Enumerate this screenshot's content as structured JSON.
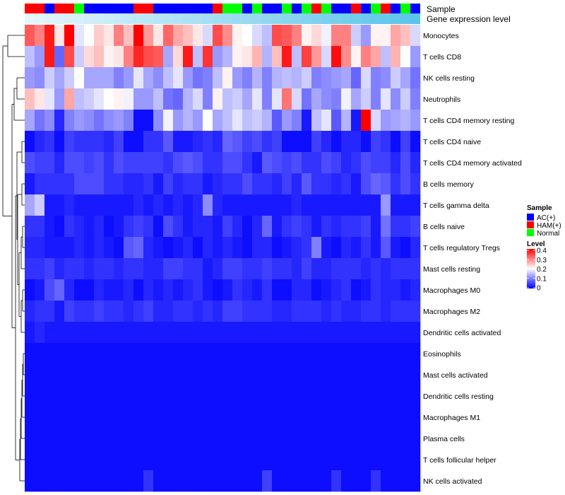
{
  "chart_data": {
    "type": "heatmap",
    "title": "",
    "annotation_labels": {
      "sample": "Sample",
      "expression": "Gene expression level"
    },
    "rows": [
      "Monocytes",
      "T cells CD8",
      "NK cells resting",
      "Neutrophils",
      "T cells CD4 memory resting",
      "T cells CD4 naive",
      "T cells CD4 memory activated",
      "B cells memory",
      "T cells gamma delta",
      "B cells naive",
      "T cells regulatory  Tregs",
      "Mast cells resting",
      "Macrophages M0",
      "Macrophages M2",
      "Dendritic cells activated",
      "Eosinophils",
      "Mast cells activated",
      "Dendritic cells resting",
      "Macrophages M1",
      "Plasma cells",
      "T cells follicular helper",
      "NK cells activated"
    ],
    "sample_groups": [
      "HAM(+)",
      "HAM(+)",
      "AC(+)",
      "HAM(+)",
      "HAM(+)",
      "Normal",
      "AC(+)",
      "AC(+)",
      "AC(+)",
      "AC(+)",
      "AC(+)",
      "HAM(+)",
      "HAM(+)",
      "AC(+)",
      "AC(+)",
      "AC(+)",
      "AC(+)",
      "AC(+)",
      "AC(+)",
      "HAM(+)",
      "Normal",
      "Normal",
      "AC(+)",
      "Normal",
      "AC(+)",
      "AC(+)",
      "Normal",
      "AC(+)",
      "Normal",
      "HAM(+)",
      "Normal",
      "AC(+)",
      "AC(+)",
      "HAM(+)",
      "AC(+)",
      "Normal",
      "HAM(+)",
      "AC(+)",
      "Normal",
      "AC(+)"
    ],
    "expression_level": [
      0.05,
      0.06,
      0.07,
      0.08,
      0.09,
      0.1,
      0.11,
      0.12,
      0.13,
      0.14,
      0.15,
      0.16,
      0.17,
      0.18,
      0.19,
      0.2,
      0.21,
      0.22,
      0.23,
      0.24,
      0.25,
      0.26,
      0.27,
      0.28,
      0.29,
      0.3,
      0.31,
      0.32,
      0.33,
      0.34,
      0.35,
      0.36,
      0.37,
      0.38,
      0.39,
      0.4,
      0.41,
      0.42,
      0.43,
      0.44
    ],
    "values": [
      [
        0.33,
        0.3,
        0.38,
        0.22,
        0.4,
        0.18,
        0.2,
        0.24,
        0.22,
        0.3,
        0.25,
        0.4,
        0.28,
        0.22,
        0.32,
        0.27,
        0.25,
        0.22,
        0.17,
        0.34,
        0.29,
        0.21,
        0.2,
        0.17,
        0.15,
        0.34,
        0.33,
        0.3,
        0.21,
        0.23,
        0.19,
        0.3,
        0.3,
        0.16,
        0.12,
        0.21,
        0.21,
        0.27,
        0.25,
        0.17
      ],
      [
        0.15,
        0.12,
        0.38,
        0.08,
        0.34,
        0.16,
        0.23,
        0.25,
        0.21,
        0.22,
        0.3,
        0.37,
        0.34,
        0.33,
        0.13,
        0.23,
        0.38,
        0.15,
        0.36,
        0.12,
        0.14,
        0.21,
        0.22,
        0.26,
        0.14,
        0.25,
        0.38,
        0.15,
        0.35,
        0.28,
        0.17,
        0.39,
        0.29,
        0.21,
        0.3,
        0.27,
        0.15,
        0.26,
        0.2,
        0.12
      ],
      [
        0.12,
        0.11,
        0.16,
        0.13,
        0.16,
        0.2,
        0.13,
        0.13,
        0.13,
        0.1,
        0.12,
        0.18,
        0.13,
        0.11,
        0.15,
        0.18,
        0.12,
        0.09,
        0.1,
        0.15,
        0.21,
        0.12,
        0.1,
        0.14,
        0.1,
        0.14,
        0.15,
        0.14,
        0.16,
        0.1,
        0.11,
        0.12,
        0.13,
        0.08,
        0.17,
        0.1,
        0.11,
        0.16,
        0.13,
        0.09
      ],
      [
        0.25,
        0.22,
        0.18,
        0.12,
        0.27,
        0.15,
        0.16,
        0.18,
        0.2,
        0.21,
        0.19,
        0.12,
        0.12,
        0.15,
        0.09,
        0.08,
        0.14,
        0.17,
        0.1,
        0.21,
        0.15,
        0.16,
        0.13,
        0.18,
        0.1,
        0.18,
        0.31,
        0.17,
        0.09,
        0.13,
        0.11,
        0.1,
        0.19,
        0.13,
        0.16,
        0.1,
        0.18,
        0.11,
        0.16,
        0.1
      ],
      [
        0.13,
        0.09,
        0.11,
        0.03,
        0.1,
        0.12,
        0.11,
        0.09,
        0.11,
        0.12,
        0.1,
        0.01,
        0.01,
        0.11,
        0.19,
        0.12,
        0.14,
        0.12,
        0.2,
        0.13,
        0.15,
        0.18,
        0.15,
        0.16,
        0.14,
        0.07,
        0.12,
        0.1,
        0.02,
        0.15,
        0.18,
        0.07,
        0.14,
        0.02,
        0.4,
        0.17,
        0.12,
        0.13,
        0.14,
        0.12
      ],
      [
        0.01,
        0.03,
        0.04,
        0.01,
        0.05,
        0.04,
        0.04,
        0.04,
        0.03,
        0.05,
        0.01,
        0.01,
        0.04,
        0.04,
        0.07,
        0.02,
        0.02,
        0.03,
        0.04,
        0.03,
        0.08,
        0.07,
        0.05,
        0.06,
        0.04,
        0.05,
        0.01,
        0.01,
        0.01,
        0.05,
        0.03,
        0.01,
        0.03,
        0.03,
        0.01,
        0.05,
        0.04,
        0.01,
        0.05,
        0.01
      ],
      [
        0.06,
        0.05,
        0.05,
        0.03,
        0.06,
        0.06,
        0.05,
        0.06,
        0.04,
        0.06,
        0.05,
        0.05,
        0.05,
        0.05,
        0.04,
        0.06,
        0.07,
        0.06,
        0.04,
        0.04,
        0.06,
        0.06,
        0.04,
        0.02,
        0.07,
        0.06,
        0.05,
        0.06,
        0.04,
        0.04,
        0.06,
        0.05,
        0.03,
        0.04,
        0.06,
        0.05,
        0.05,
        0.03,
        0.06,
        0.03
      ],
      [
        0.02,
        0.04,
        0.04,
        0.04,
        0.04,
        0.06,
        0.06,
        0.06,
        0.04,
        0.04,
        0.03,
        0.03,
        0.04,
        0.02,
        0.05,
        0.03,
        0.04,
        0.04,
        0.02,
        0.03,
        0.04,
        0.04,
        0.06,
        0.04,
        0.04,
        0.03,
        0.05,
        0.03,
        0.07,
        0.04,
        0.04,
        0.03,
        0.04,
        0.02,
        0.06,
        0.08,
        0.07,
        0.04,
        0.06,
        0.04
      ],
      [
        0.13,
        0.16,
        0.02,
        0.02,
        0.03,
        0.02,
        0.02,
        0.02,
        0.02,
        0.02,
        0.02,
        0.03,
        0.02,
        0.03,
        0.02,
        0.03,
        0.02,
        0.03,
        0.11,
        0.03,
        0.02,
        0.02,
        0.02,
        0.02,
        0.02,
        0.02,
        0.02,
        0.03,
        0.02,
        0.02,
        0.02,
        0.02,
        0.02,
        0.02,
        0.02,
        0.02,
        0.12,
        0.02,
        0.02,
        0.02
      ],
      [
        0.04,
        0.04,
        0.02,
        0.01,
        0.04,
        0.03,
        0.02,
        0.03,
        0.01,
        0.02,
        0.04,
        0.05,
        0.04,
        0.01,
        0.06,
        0.04,
        0.02,
        0.03,
        0.03,
        0.02,
        0.05,
        0.03,
        0.01,
        0.03,
        0.08,
        0.02,
        0.04,
        0.05,
        0.04,
        0.02,
        0.04,
        0.03,
        0.04,
        0.04,
        0.05,
        0.02,
        0.09,
        0.04,
        0.04,
        0.05
      ],
      [
        0.03,
        0.03,
        0.02,
        0.02,
        0.02,
        0.03,
        0.02,
        0.03,
        0.02,
        0.01,
        0.07,
        0.08,
        0.03,
        0.02,
        0.01,
        0.02,
        0.03,
        0.01,
        0.03,
        0.02,
        0.03,
        0.02,
        0.01,
        0.03,
        0.03,
        0.01,
        0.02,
        0.03,
        0.04,
        0.1,
        0.02,
        0.01,
        0.03,
        0.02,
        0.04,
        0.02,
        0.07,
        0.02,
        0.01,
        0.03
      ],
      [
        0.04,
        0.04,
        0.05,
        0.03,
        0.04,
        0.04,
        0.03,
        0.04,
        0.04,
        0.03,
        0.04,
        0.04,
        0.03,
        0.03,
        0.05,
        0.05,
        0.04,
        0.04,
        0.02,
        0.03,
        0.05,
        0.05,
        0.04,
        0.04,
        0.05,
        0.04,
        0.04,
        0.03,
        0.05,
        0.03,
        0.03,
        0.04,
        0.04,
        0.04,
        0.03,
        0.04,
        0.03,
        0.04,
        0.04,
        0.04
      ],
      [
        0.01,
        0.02,
        0.06,
        0.08,
        0.03,
        0.01,
        0.01,
        0.03,
        0.02,
        0.02,
        0.03,
        0.01,
        0.03,
        0.02,
        0.03,
        0.02,
        0.03,
        0.04,
        0.02,
        0.01,
        0.02,
        0.04,
        0.03,
        0.02,
        0.04,
        0.01,
        0.01,
        0.03,
        0.03,
        0.01,
        0.02,
        0.03,
        0.04,
        0.01,
        0.02,
        0.04,
        0.03,
        0.03,
        0.02,
        0.03
      ],
      [
        0.03,
        0.04,
        0.04,
        0.02,
        0.05,
        0.04,
        0.04,
        0.05,
        0.04,
        0.04,
        0.03,
        0.04,
        0.05,
        0.03,
        0.03,
        0.04,
        0.04,
        0.03,
        0.04,
        0.03,
        0.05,
        0.05,
        0.04,
        0.04,
        0.04,
        0.03,
        0.03,
        0.04,
        0.04,
        0.04,
        0.03,
        0.04,
        0.03,
        0.03,
        0.04,
        0.04,
        0.03,
        0.04,
        0.04,
        0.04
      ],
      [
        0.02,
        0.03,
        0.02,
        0.02,
        0.02,
        0.02,
        0.02,
        0.02,
        0.02,
        0.02,
        0.02,
        0.02,
        0.02,
        0.02,
        0.02,
        0.02,
        0.02,
        0.02,
        0.02,
        0.02,
        0.02,
        0.02,
        0.02,
        0.02,
        0.02,
        0.02,
        0.02,
        0.02,
        0.02,
        0.02,
        0.02,
        0.02,
        0.02,
        0.02,
        0.02,
        0.02,
        0.02,
        0.02,
        0.02,
        0.02
      ],
      [
        0.01,
        0.01,
        0.01,
        0.01,
        0.01,
        0.01,
        0.01,
        0.01,
        0.01,
        0.01,
        0.01,
        0.01,
        0.01,
        0.01,
        0.01,
        0.01,
        0.01,
        0.01,
        0.01,
        0.01,
        0.01,
        0.01,
        0.01,
        0.01,
        0.01,
        0.01,
        0.01,
        0.01,
        0.01,
        0.01,
        0.01,
        0.01,
        0.01,
        0.01,
        0.01,
        0.01,
        0.01,
        0.01,
        0.01,
        0.01
      ],
      [
        0.01,
        0.01,
        0.01,
        0.01,
        0.01,
        0.01,
        0.01,
        0.01,
        0.01,
        0.01,
        0.01,
        0.01,
        0.01,
        0.01,
        0.01,
        0.01,
        0.01,
        0.01,
        0.01,
        0.01,
        0.01,
        0.01,
        0.01,
        0.01,
        0.01,
        0.01,
        0.01,
        0.01,
        0.01,
        0.01,
        0.01,
        0.01,
        0.01,
        0.01,
        0.01,
        0.01,
        0.01,
        0.01,
        0.01,
        0.01
      ],
      [
        0.01,
        0.01,
        0.01,
        0.01,
        0.01,
        0.01,
        0.01,
        0.01,
        0.01,
        0.01,
        0.01,
        0.01,
        0.01,
        0.01,
        0.01,
        0.01,
        0.01,
        0.01,
        0.01,
        0.01,
        0.01,
        0.01,
        0.01,
        0.01,
        0.01,
        0.01,
        0.01,
        0.01,
        0.01,
        0.01,
        0.01,
        0.01,
        0.01,
        0.01,
        0.01,
        0.01,
        0.01,
        0.01,
        0.01,
        0.01
      ],
      [
        0.01,
        0.01,
        0.01,
        0.01,
        0.01,
        0.01,
        0.01,
        0.01,
        0.01,
        0.01,
        0.01,
        0.01,
        0.01,
        0.01,
        0.01,
        0.01,
        0.01,
        0.01,
        0.01,
        0.01,
        0.01,
        0.01,
        0.01,
        0.01,
        0.01,
        0.01,
        0.01,
        0.01,
        0.01,
        0.01,
        0.01,
        0.01,
        0.01,
        0.01,
        0.01,
        0.01,
        0.01,
        0.01,
        0.01,
        0.01
      ],
      [
        0.01,
        0.01,
        0.01,
        0.01,
        0.01,
        0.01,
        0.01,
        0.01,
        0.01,
        0.01,
        0.01,
        0.01,
        0.01,
        0.01,
        0.01,
        0.01,
        0.01,
        0.01,
        0.01,
        0.01,
        0.01,
        0.01,
        0.01,
        0.01,
        0.01,
        0.01,
        0.01,
        0.01,
        0.01,
        0.01,
        0.01,
        0.01,
        0.01,
        0.01,
        0.01,
        0.01,
        0.01,
        0.01,
        0.01,
        0.01
      ],
      [
        0.01,
        0.01,
        0.01,
        0.01,
        0.01,
        0.01,
        0.01,
        0.01,
        0.01,
        0.01,
        0.01,
        0.01,
        0.01,
        0.01,
        0.01,
        0.01,
        0.01,
        0.01,
        0.01,
        0.01,
        0.01,
        0.01,
        0.01,
        0.01,
        0.01,
        0.01,
        0.01,
        0.01,
        0.01,
        0.01,
        0.01,
        0.01,
        0.01,
        0.01,
        0.01,
        0.01,
        0.01,
        0.01,
        0.01,
        0.01
      ],
      [
        0.01,
        0.01,
        0.01,
        0.01,
        0.01,
        0.01,
        0.01,
        0.01,
        0.01,
        0.01,
        0.01,
        0.01,
        0.04,
        0.01,
        0.01,
        0.01,
        0.01,
        0.01,
        0.01,
        0.01,
        0.01,
        0.01,
        0.01,
        0.01,
        0.05,
        0.01,
        0.01,
        0.01,
        0.01,
        0.01,
        0.01,
        0.04,
        0.01,
        0.01,
        0.01,
        0.04,
        0.01,
        0.01,
        0.01,
        0.01
      ]
    ],
    "color_scale": {
      "min": 0,
      "max": 0.4,
      "low": "#0000ff",
      "mid": "#ffffff",
      "high": "#ff0000",
      "midpoint": 0.2
    },
    "legend": {
      "sample_title": "Sample",
      "sample_entries": [
        {
          "label": "AC(+)",
          "color": "#0000ff"
        },
        {
          "label": "HAM(+)",
          "color": "#ff0000"
        },
        {
          "label": "Normal",
          "color": "#00ff00"
        }
      ],
      "level_title": "Level",
      "level_ticks": [
        "0.4",
        "0.3",
        "0.2",
        "0.1",
        "0"
      ],
      "level_values": [
        0.4,
        0.3,
        0.2,
        0.1,
        0
      ]
    },
    "expression_colors": {
      "low": "#e6f6fb",
      "high": "#5bc4ea"
    }
  }
}
